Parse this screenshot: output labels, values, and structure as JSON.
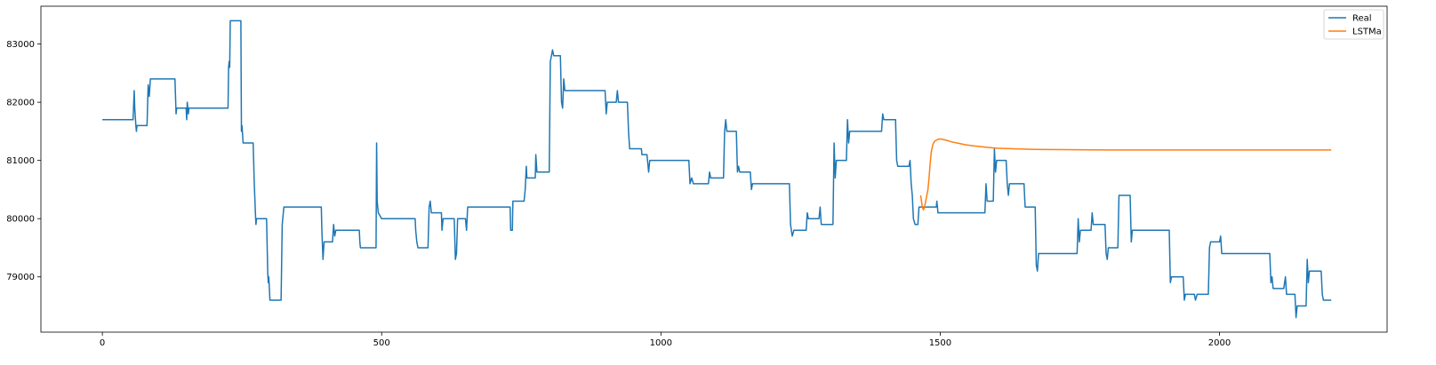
{
  "chart_data": {
    "type": "line",
    "title": "",
    "xlabel": "",
    "ylabel": "",
    "xlim": [
      -110,
      2300
    ],
    "ylim": [
      78050,
      83650
    ],
    "grid": false,
    "legend_placement": "top-right",
    "x_ticks": [
      0,
      500,
      1000,
      1500,
      2000
    ],
    "y_ticks": [
      79000,
      80000,
      81000,
      82000,
      83000
    ],
    "x_tick_labels": [
      "0",
      "500",
      "1000",
      "1500",
      "2000"
    ],
    "y_tick_labels": [
      "79000",
      "80000",
      "81000",
      "82000",
      "83000"
    ],
    "colors": {
      "Real": "#1f77b4",
      "LSTMa": "#ff7f0e"
    },
    "series": [
      {
        "name": "Real",
        "points": [
          [
            0,
            81700
          ],
          [
            55,
            81700
          ],
          [
            57,
            82200
          ],
          [
            58,
            81900
          ],
          [
            60,
            81600
          ],
          [
            61,
            81500
          ],
          [
            62,
            81600
          ],
          [
            80,
            81600
          ],
          [
            82,
            82300
          ],
          [
            84,
            82100
          ],
          [
            86,
            82400
          ],
          [
            130,
            82400
          ],
          [
            131,
            82100
          ],
          [
            132,
            81800
          ],
          [
            133,
            81900
          ],
          [
            150,
            81900
          ],
          [
            151,
            81700
          ],
          [
            152,
            82000
          ],
          [
            154,
            81800
          ],
          [
            155,
            81900
          ],
          [
            225,
            81900
          ],
          [
            226,
            82600
          ],
          [
            227,
            82700
          ],
          [
            228,
            82600
          ],
          [
            229,
            83400
          ],
          [
            248,
            83400
          ],
          [
            249,
            81500
          ],
          [
            250,
            81600
          ],
          [
            252,
            81300
          ],
          [
            270,
            81300
          ],
          [
            272,
            80600
          ],
          [
            274,
            80100
          ],
          [
            275,
            79900
          ],
          [
            276,
            80000
          ],
          [
            294,
            80000
          ],
          [
            296,
            79100
          ],
          [
            297,
            78900
          ],
          [
            298,
            79000
          ],
          [
            300,
            78600
          ],
          [
            320,
            78600
          ],
          [
            322,
            79900
          ],
          [
            323,
            80000
          ],
          [
            325,
            80200
          ],
          [
            392,
            80200
          ],
          [
            393,
            79800
          ],
          [
            395,
            79300
          ],
          [
            397,
            79600
          ],
          [
            412,
            79600
          ],
          [
            414,
            79900
          ],
          [
            416,
            79700
          ],
          [
            418,
            79800
          ],
          [
            460,
            79800
          ],
          [
            461,
            79600
          ],
          [
            462,
            79500
          ],
          [
            490,
            79500
          ],
          [
            491,
            81300
          ],
          [
            492,
            80300
          ],
          [
            494,
            80100
          ],
          [
            500,
            80000
          ],
          [
            560,
            80000
          ],
          [
            561,
            79800
          ],
          [
            563,
            79600
          ],
          [
            565,
            79500
          ],
          [
            583,
            79500
          ],
          [
            585,
            80200
          ],
          [
            587,
            80300
          ],
          [
            589,
            80100
          ],
          [
            607,
            80100
          ],
          [
            608,
            79800
          ],
          [
            610,
            80000
          ],
          [
            630,
            80000
          ],
          [
            632,
            79300
          ],
          [
            634,
            79400
          ],
          [
            636,
            80000
          ],
          [
            650,
            80000
          ],
          [
            652,
            79800
          ],
          [
            654,
            80200
          ],
          [
            730,
            80200
          ],
          [
            731,
            79800
          ],
          [
            734,
            79800
          ],
          [
            735,
            80300
          ],
          [
            755,
            80300
          ],
          [
            757,
            80500
          ],
          [
            758,
            80700
          ],
          [
            759,
            80900
          ],
          [
            760,
            80700
          ],
          [
            775,
            80700
          ],
          [
            776,
            81100
          ],
          [
            778,
            80800
          ],
          [
            800,
            80800
          ],
          [
            802,
            82700
          ],
          [
            804,
            82800
          ],
          [
            806,
            82900
          ],
          [
            808,
            82800
          ],
          [
            820,
            82800
          ],
          [
            822,
            82000
          ],
          [
            824,
            81900
          ],
          [
            826,
            82400
          ],
          [
            828,
            82200
          ],
          [
            900,
            82200
          ],
          [
            902,
            81800
          ],
          [
            904,
            82000
          ],
          [
            920,
            82000
          ],
          [
            922,
            82200
          ],
          [
            924,
            82000
          ],
          [
            940,
            82000
          ],
          [
            942,
            81500
          ],
          [
            944,
            81200
          ],
          [
            950,
            81200
          ],
          [
            965,
            81200
          ],
          [
            966,
            81100
          ],
          [
            970,
            81100
          ],
          [
            975,
            81100
          ],
          [
            978,
            80800
          ],
          [
            980,
            81000
          ],
          [
            1050,
            81000
          ],
          [
            1052,
            80600
          ],
          [
            1055,
            80700
          ],
          [
            1058,
            80600
          ],
          [
            1085,
            80600
          ],
          [
            1087,
            80800
          ],
          [
            1089,
            80700
          ],
          [
            1112,
            80700
          ],
          [
            1114,
            81500
          ],
          [
            1116,
            81700
          ],
          [
            1118,
            81500
          ],
          [
            1135,
            81500
          ],
          [
            1137,
            80800
          ],
          [
            1139,
            80900
          ],
          [
            1141,
            80800
          ],
          [
            1160,
            80800
          ],
          [
            1162,
            80500
          ],
          [
            1164,
            80600
          ],
          [
            1230,
            80600
          ],
          [
            1232,
            79900
          ],
          [
            1235,
            79700
          ],
          [
            1238,
            79800
          ],
          [
            1260,
            79800
          ],
          [
            1262,
            80100
          ],
          [
            1264,
            80000
          ],
          [
            1283,
            80000
          ],
          [
            1285,
            80200
          ],
          [
            1287,
            79900
          ],
          [
            1308,
            79900
          ],
          [
            1310,
            81300
          ],
          [
            1312,
            80700
          ],
          [
            1314,
            81000
          ],
          [
            1332,
            81000
          ],
          [
            1334,
            81700
          ],
          [
            1336,
            81300
          ],
          [
            1338,
            81500
          ],
          [
            1395,
            81500
          ],
          [
            1397,
            81800
          ],
          [
            1399,
            81700
          ],
          [
            1420,
            81700
          ],
          [
            1422,
            81000
          ],
          [
            1424,
            80900
          ],
          [
            1444,
            80900
          ],
          [
            1446,
            81000
          ],
          [
            1448,
            80600
          ],
          [
            1450,
            80400
          ],
          [
            1452,
            80000
          ],
          [
            1455,
            79900
          ],
          [
            1460,
            79900
          ],
          [
            1462,
            80200
          ],
          [
            1475,
            80200
          ],
          [
            1477,
            80200
          ],
          [
            1493,
            80200
          ],
          [
            1494,
            80300
          ],
          [
            1496,
            80100
          ],
          [
            1580,
            80100
          ],
          [
            1582,
            80600
          ],
          [
            1584,
            80300
          ],
          [
            1595,
            80300
          ],
          [
            1597,
            81200
          ],
          [
            1599,
            80800
          ],
          [
            1601,
            81000
          ],
          [
            1618,
            81000
          ],
          [
            1620,
            80600
          ],
          [
            1622,
            80400
          ],
          [
            1624,
            80600
          ],
          [
            1650,
            80600
          ],
          [
            1652,
            80200
          ],
          [
            1670,
            80200
          ],
          [
            1672,
            79200
          ],
          [
            1674,
            79100
          ],
          [
            1676,
            79400
          ],
          [
            1745,
            79400
          ],
          [
            1747,
            80000
          ],
          [
            1749,
            79600
          ],
          [
            1751,
            79800
          ],
          [
            1770,
            79800
          ],
          [
            1772,
            80100
          ],
          [
            1774,
            79900
          ],
          [
            1795,
            79900
          ],
          [
            1797,
            79400
          ],
          [
            1799,
            79300
          ],
          [
            1801,
            79500
          ],
          [
            1818,
            79500
          ],
          [
            1820,
            80400
          ],
          [
            1840,
            80400
          ],
          [
            1842,
            79600
          ],
          [
            1844,
            79800
          ],
          [
            1910,
            79800
          ],
          [
            1912,
            78900
          ],
          [
            1914,
            79000
          ],
          [
            1935,
            79000
          ],
          [
            1937,
            78600
          ],
          [
            1939,
            78700
          ],
          [
            1955,
            78700
          ],
          [
            1957,
            78600
          ],
          [
            1960,
            78700
          ],
          [
            1980,
            78700
          ],
          [
            1982,
            79500
          ],
          [
            1984,
            79600
          ],
          [
            1986,
            79600
          ],
          [
            2000,
            79600
          ],
          [
            2002,
            79700
          ],
          [
            2004,
            79400
          ],
          [
            2090,
            79400
          ],
          [
            2092,
            78900
          ],
          [
            2094,
            79000
          ],
          [
            2096,
            78800
          ],
          [
            2115,
            78800
          ],
          [
            2118,
            79000
          ],
          [
            2120,
            78700
          ],
          [
            2135,
            78700
          ],
          [
            2137,
            78300
          ],
          [
            2139,
            78500
          ],
          [
            2155,
            78500
          ],
          [
            2157,
            79300
          ],
          [
            2159,
            78900
          ],
          [
            2161,
            79100
          ],
          [
            2182,
            79100
          ],
          [
            2184,
            78700
          ],
          [
            2186,
            78600
          ],
          [
            2200,
            78600
          ]
        ]
      },
      {
        "name": "LSTMa",
        "points": [
          [
            1465,
            80400
          ],
          [
            1468,
            80200
          ],
          [
            1470,
            80150
          ],
          [
            1472,
            80200
          ],
          [
            1474,
            80300
          ],
          [
            1476,
            80400
          ],
          [
            1478,
            80500
          ],
          [
            1480,
            80700
          ],
          [
            1482,
            80950
          ],
          [
            1484,
            81150
          ],
          [
            1487,
            81280
          ],
          [
            1490,
            81330
          ],
          [
            1495,
            81360
          ],
          [
            1500,
            81370
          ],
          [
            1510,
            81350
          ],
          [
            1520,
            81320
          ],
          [
            1530,
            81300
          ],
          [
            1545,
            81270
          ],
          [
            1560,
            81250
          ],
          [
            1580,
            81230
          ],
          [
            1600,
            81210
          ],
          [
            1630,
            81200
          ],
          [
            1670,
            81190
          ],
          [
            1720,
            81185
          ],
          [
            1800,
            81180
          ],
          [
            1900,
            81180
          ],
          [
            2000,
            81180
          ],
          [
            2100,
            81180
          ],
          [
            2200,
            81180
          ]
        ]
      }
    ]
  }
}
